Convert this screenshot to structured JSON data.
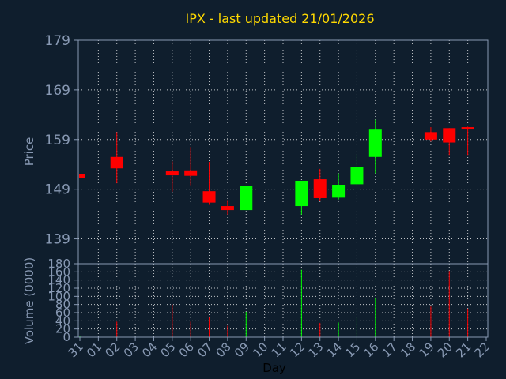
{
  "chart_data": [
    {
      "type": "candlestick",
      "title": "IPX - last updated 21/01/2026",
      "ylabel": "Price",
      "ylim": [
        134,
        179
      ],
      "yticks": [
        139,
        149,
        159,
        169,
        179
      ],
      "grid": true,
      "categories": [
        "31",
        "01",
        "02",
        "03",
        "04",
        "05",
        "06",
        "07",
        "08",
        "09",
        "10",
        "11",
        "12",
        "13",
        "14",
        "15",
        "16",
        "17",
        "18",
        "19",
        "20",
        "21",
        "22"
      ],
      "candles": [
        {
          "x": "31",
          "open": 152.0,
          "close": 151.3,
          "high": 152.0,
          "low": 151.3
        },
        {
          "x": "02",
          "open": 155.5,
          "close": 153.2,
          "high": 160.5,
          "low": 150.2
        },
        {
          "x": "05",
          "open": 152.6,
          "close": 151.8,
          "high": 154.6,
          "low": 148.5
        },
        {
          "x": "06",
          "open": 152.8,
          "close": 151.7,
          "high": 157.5,
          "low": 149.8
        },
        {
          "x": "07",
          "open": 148.6,
          "close": 146.3,
          "high": 154.5,
          "low": 146.0
        },
        {
          "x": "08",
          "open": 145.6,
          "close": 144.8,
          "high": 146.8,
          "low": 143.9
        },
        {
          "x": "09",
          "open": 144.8,
          "close": 149.6,
          "high": 149.6,
          "low": 144.8
        },
        {
          "x": "12",
          "open": 145.6,
          "close": 150.7,
          "high": 150.7,
          "low": 143.9
        },
        {
          "x": "13",
          "open": 151.0,
          "close": 147.2,
          "high": 153.1,
          "low": 146.6
        },
        {
          "x": "14",
          "open": 147.3,
          "close": 149.9,
          "high": 152.2,
          "low": 146.9
        },
        {
          "x": "15",
          "open": 150.0,
          "close": 153.4,
          "high": 156.0,
          "low": 149.7
        },
        {
          "x": "16",
          "open": 155.5,
          "close": 161.0,
          "high": 163.0,
          "low": 152.2
        },
        {
          "x": "19",
          "open": 160.5,
          "close": 159.0,
          "high": 161.5,
          "low": 158.6
        },
        {
          "x": "20",
          "open": 161.3,
          "close": 158.4,
          "high": 161.3,
          "low": 155.9
        },
        {
          "x": "21",
          "open": 161.5,
          "close": 161.1,
          "high": 161.6,
          "low": 155.9
        }
      ],
      "colors": {
        "up": "#00ff00",
        "down": "#ff0000",
        "grid": "#ffffff",
        "axis": "#8899b3",
        "title": "#ffd900",
        "background": "#0f1e2d"
      }
    },
    {
      "type": "bar",
      "xlabel": "Day",
      "ylabel": "Volume (0000)",
      "ylim": [
        0,
        180
      ],
      "yticks": [
        0,
        20,
        40,
        60,
        80,
        100,
        120,
        140,
        160,
        180
      ],
      "categories": [
        "31",
        "01",
        "02",
        "03",
        "04",
        "05",
        "06",
        "07",
        "08",
        "09",
        "10",
        "11",
        "12",
        "13",
        "14",
        "15",
        "16",
        "17",
        "18",
        "19",
        "20",
        "21",
        "22"
      ],
      "values": [
        3,
        0,
        38,
        0,
        0,
        80,
        38,
        48,
        28,
        62,
        0,
        0,
        165,
        35,
        36,
        48,
        97,
        0,
        0,
        75,
        162,
        70,
        0
      ],
      "bar_colors": [
        "up",
        "none",
        "down",
        "none",
        "none",
        "down",
        "down",
        "down",
        "down",
        "up",
        "none",
        "none",
        "up",
        "down",
        "up",
        "up",
        "up",
        "none",
        "none",
        "down",
        "down",
        "down",
        "none"
      ]
    }
  ]
}
